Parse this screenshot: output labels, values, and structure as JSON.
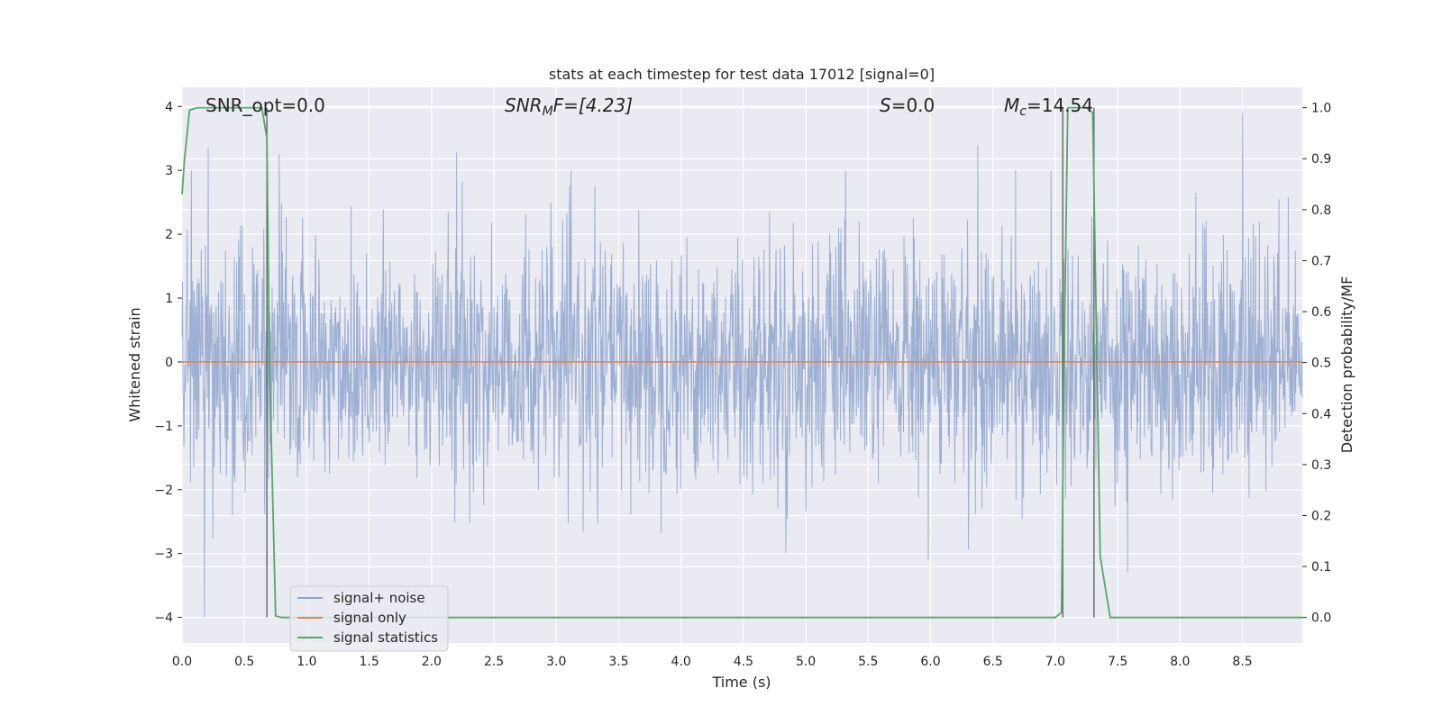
{
  "chart_data": {
    "type": "line",
    "title": "stats at each timestep for test data 17012 [signal=0]",
    "xlabel": "Time (s)",
    "ylabel_left": "Whitened strain",
    "ylabel_right": "Detection probability/MF",
    "xlim": [
      0.0,
      8.98
    ],
    "ylim_left": [
      -4.4,
      4.3
    ],
    "ylim_right": [
      -0.05,
      1.04
    ],
    "x_ticks": [
      "0.0",
      "0.5",
      "1.0",
      "1.5",
      "2.0",
      "2.5",
      "3.0",
      "3.5",
      "4.0",
      "4.5",
      "5.0",
      "5.5",
      "6.0",
      "6.5",
      "7.0",
      "7.5",
      "8.0",
      "8.5"
    ],
    "y_left_ticks": [
      "4",
      "3",
      "2",
      "1",
      "0",
      "−1",
      "−2",
      "−3",
      "−4"
    ],
    "y_right_ticks": [
      "1.0",
      "0.9",
      "0.8",
      "0.7",
      "0.6",
      "0.5",
      "0.4",
      "0.3",
      "0.2",
      "0.1",
      "0.0"
    ],
    "grid": true,
    "legend_position": "lower-left",
    "annotations": {
      "snr_opt": "SNR_opt=0.0",
      "snr_mf_main": "SNR",
      "snr_mf_sub": "M",
      "snr_mf_rest": "F=[4.23]",
      "s_italic": "S",
      "s_rest": "=0.0",
      "mc_main": "M",
      "mc_sub": "c",
      "mc_rest": "=14.54"
    },
    "series": [
      {
        "name": "signal+ noise",
        "color": "#8fa4cc",
        "note": "noise series, approx range -4.0 to 3.9",
        "notable_spikes": [
          {
            "x": 0.18,
            "y": -4.0
          },
          {
            "x": 0.21,
            "y": 3.35
          },
          {
            "x": 0.78,
            "y": 3.25
          },
          {
            "x": 2.2,
            "y": 3.28
          },
          {
            "x": 5.98,
            "y": -3.1
          },
          {
            "x": 6.38,
            "y": 3.4
          },
          {
            "x": 7.58,
            "y": -3.3
          },
          {
            "x": 8.5,
            "y": 3.9
          }
        ]
      },
      {
        "name": "signal only",
        "color": "#dd8452",
        "x": [
          0.0,
          8.98
        ],
        "y": [
          0.0,
          0.0
        ]
      },
      {
        "name": "signal statistics",
        "color": "#55a868",
        "axis": "right",
        "x": [
          0.0,
          0.02,
          0.06,
          0.12,
          0.2,
          0.3,
          0.4,
          0.5,
          0.6,
          0.64,
          0.68,
          0.7,
          0.75,
          0.8,
          0.9,
          1.0,
          2.0,
          3.0,
          4.0,
          5.0,
          6.0,
          7.0,
          7.05,
          7.07,
          7.1,
          7.15,
          7.2,
          7.25,
          7.3,
          7.36,
          7.44,
          7.6,
          8.0,
          8.5,
          8.98
        ],
        "y": [
          0.83,
          0.9,
          0.995,
          1.0,
          1.0,
          1.0,
          1.0,
          1.0,
          1.0,
          1.0,
          0.94,
          0.5,
          0.003,
          0.0,
          0.0,
          0.0,
          0.0,
          0.0,
          0.0,
          0.0,
          0.0,
          0.0,
          0.01,
          0.5,
          1.0,
          1.0,
          1.0,
          1.0,
          0.99,
          0.12,
          0.0,
          0.0,
          0.0,
          0.0,
          0.0
        ]
      }
    ],
    "vertical_markers_x": [
      0.68,
      7.06,
      7.31
    ],
    "marker_color": "#666666"
  },
  "legend": {
    "noise_label": "signal+ noise",
    "signal_label": "signal only",
    "stats_label": "signal statistics"
  }
}
